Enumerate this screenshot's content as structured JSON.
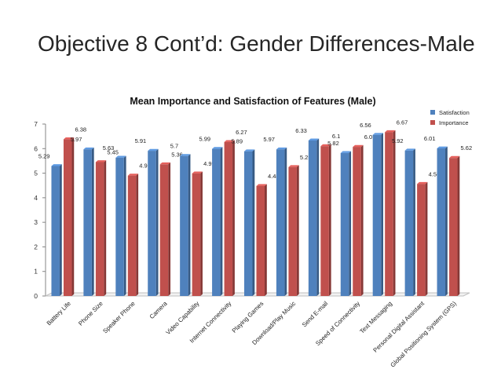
{
  "slide": {
    "title": "Objective 8 Cont’d: Gender Differences-Male"
  },
  "chart_data": {
    "type": "bar",
    "title": "Mean Importance and Satisfaction of Features (Male)",
    "xlabel": "",
    "ylabel": "",
    "ylim": [
      0,
      7
    ],
    "yticks": [
      0,
      1,
      2,
      3,
      4,
      5,
      6,
      7
    ],
    "legend_position": "top-right",
    "categories": [
      "Battery Life",
      "Phone Size",
      "Speaker Phone",
      "Camera",
      "Video Capability",
      "Internet Connectivity",
      "Playing Games",
      "Download/Play Music",
      "Send E-mail",
      "Speed of Connectivity",
      "Text Messaging",
      "Personal Digital Assistant",
      "Global Positioning System (GPS)"
    ],
    "series": [
      {
        "name": "Satisfaction",
        "color": "#4f81bd",
        "values": [
          5.29,
          5.97,
          5.63,
          5.91,
          5.7,
          5.99,
          5.89,
          5.97,
          6.33,
          5.82,
          6.56,
          5.92,
          6.01
        ]
      },
      {
        "name": "Importance",
        "color": "#c0504d",
        "values": [
          6.38,
          5.45,
          4.9,
          5.36,
          4.99,
          6.27,
          4.48,
          5.25,
          6.1,
          6.07,
          6.67,
          4.56,
          5.62
        ]
      }
    ]
  }
}
